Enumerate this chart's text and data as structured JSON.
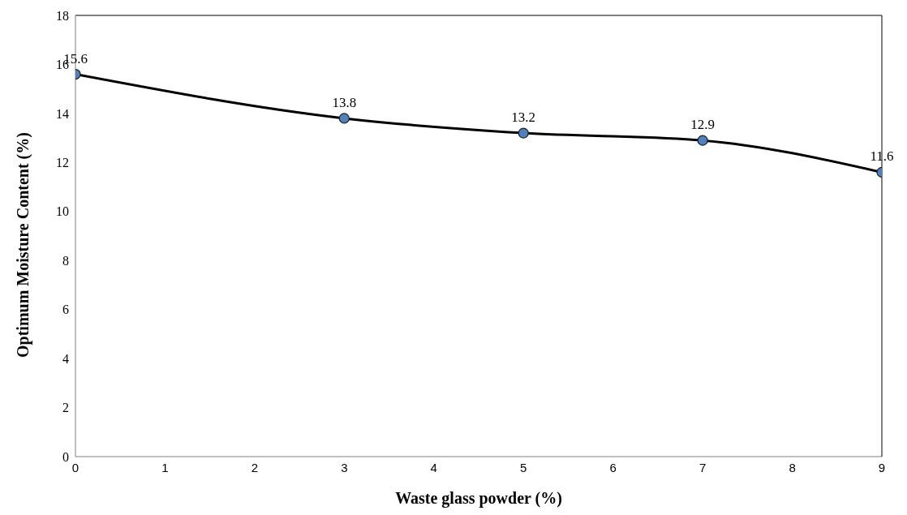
{
  "chart_data": {
    "type": "line",
    "xlabel": "Waste glass powder (%)",
    "ylabel": "Optimum Moisture Content (%)",
    "x": [
      0,
      3,
      5,
      7,
      9
    ],
    "series": [
      {
        "color": "#000000",
        "values": [
          15.6,
          13.8,
          13.2,
          12.9,
          11.6
        ]
      }
    ],
    "xlim": [
      0,
      9
    ],
    "xticks": [
      0,
      1,
      2,
      3,
      4,
      5,
      6,
      7,
      8,
      9
    ],
    "ylim": [
      0,
      18
    ],
    "yticks": [
      0,
      2,
      4,
      6,
      8,
      10,
      12,
      14,
      16,
      18
    ],
    "marker": "circle",
    "line_style": "solid",
    "data_labels": true
  }
}
